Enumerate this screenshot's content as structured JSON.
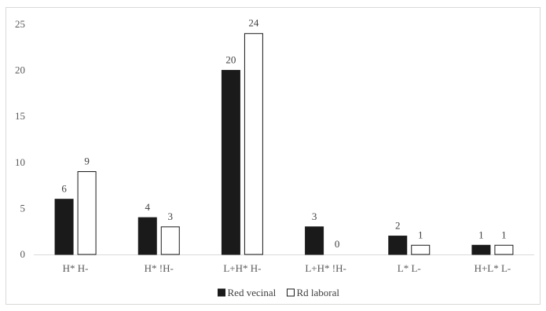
{
  "chart_data": {
    "type": "bar",
    "categories": [
      "H* H-",
      "H* !H-",
      "L+H* H-",
      "L+H* !H-",
      "L* L-",
      "H+L* L-"
    ],
    "series": [
      {
        "name": "Red vecinal",
        "values": [
          6,
          4,
          20,
          3,
          2,
          1
        ],
        "color": "#1a1a1a"
      },
      {
        "name": "Rd laboral",
        "values": [
          9,
          3,
          24,
          0,
          1,
          1
        ],
        "color": "#ffffff"
      }
    ],
    "ylim": [
      0,
      25
    ],
    "yticks": [
      0,
      5,
      10,
      15,
      20,
      25
    ],
    "grid": false,
    "legend_position": "bottom"
  }
}
